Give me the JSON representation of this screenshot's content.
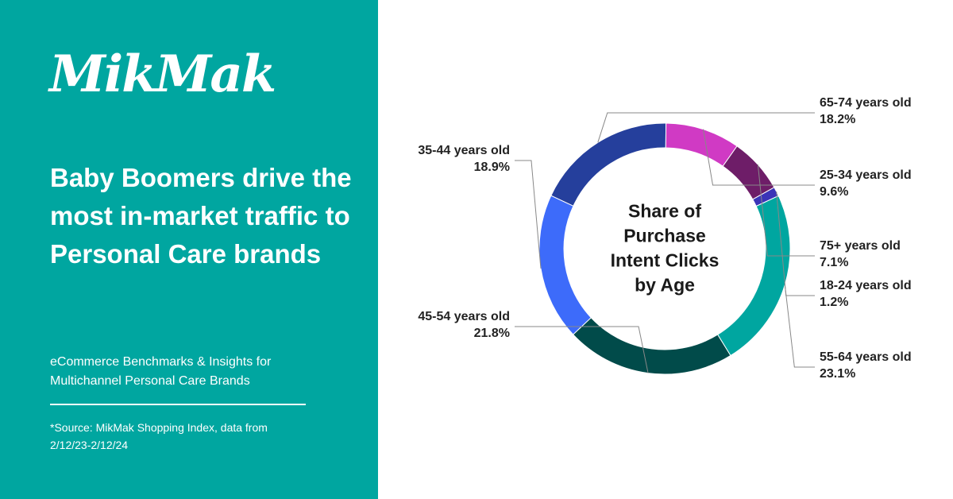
{
  "brand": {
    "logo_text": "MikMak"
  },
  "headline": "Baby Boomers drive the most in-market traffic to Personal Care brands",
  "subtitle": "eCommerce Benchmarks & Insights for Multichannel Personal Care Brands",
  "source": "*Source: MikMak Shopping Index, data from 2/12/23-2/12/24",
  "colors": {
    "panel": "#00a6a0",
    "text": "#ffffff"
  },
  "chart_data": {
    "type": "pie",
    "variant": "donut",
    "title_lines": [
      "Share of",
      "Purchase",
      "Intent Clicks",
      "by Age"
    ],
    "slices": [
      {
        "label": "65-74 years old",
        "value_text": "18.2%",
        "value": 18.2,
        "color": "#253f9c"
      },
      {
        "label": "25-34 years old",
        "value_text": "9.6%",
        "value": 9.6,
        "color": "#d03ac4"
      },
      {
        "label": "75+ years old",
        "value_text": "7.1%",
        "value": 7.1,
        "color": "#6e1d68"
      },
      {
        "label": "18-24 years old",
        "value_text": "1.2%",
        "value": 1.2,
        "color": "#3b34b8"
      },
      {
        "label": "55-64 years old",
        "value_text": "23.1%",
        "value": 23.1,
        "color": "#00a6a0"
      },
      {
        "label": "45-54 years old",
        "value_text": "21.8%",
        "value": 21.8,
        "color": "#014b4a"
      },
      {
        "label": "35-44 years old",
        "value_text": "18.9%",
        "value": 18.9,
        "color": "#3d6bfa"
      }
    ]
  }
}
